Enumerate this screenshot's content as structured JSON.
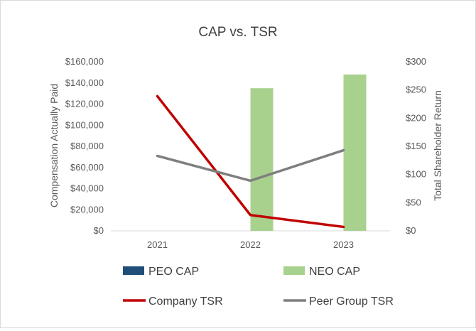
{
  "chart_data": {
    "type": "bar+line",
    "title": "CAP vs. TSR",
    "categories": [
      "2021",
      "2022",
      "2023"
    ],
    "ylabel_left": "Compensation Actually Paid",
    "ylabel_right": "Total Shareholder Return",
    "ylim_left": [
      0,
      160000
    ],
    "ylim_right": [
      0,
      300
    ],
    "yticks_left": [
      "$0",
      "$20,000",
      "$40,000",
      "$60,000",
      "$80,000",
      "$100,000",
      "$120,000",
      "$140,000",
      "$160,000"
    ],
    "yticks_right": [
      "$0",
      "$50",
      "$100",
      "$150",
      "$200",
      "$250",
      "$300"
    ],
    "grid": false,
    "bar_series": [
      {
        "name": "PEO CAP",
        "axis": "left",
        "color": "#1f4e79",
        "values": [
          0,
          0,
          0
        ]
      },
      {
        "name": "NEO CAP",
        "axis": "left",
        "color": "#a9d18e",
        "values": [
          0,
          135000,
          148000
        ]
      }
    ],
    "line_series": [
      {
        "name": "Company TSR",
        "axis": "right",
        "color": "#c00000",
        "values": [
          239,
          28,
          7
        ]
      },
      {
        "name": "Peer Group TSR",
        "axis": "right",
        "color": "#7f7f7f",
        "values": [
          133,
          89,
          143
        ]
      }
    ],
    "legend": [
      {
        "name": "PEO CAP",
        "kind": "bar",
        "color": "#1f4e79"
      },
      {
        "name": "NEO CAP",
        "kind": "bar",
        "color": "#a9d18e"
      },
      {
        "name": "Company TSR",
        "kind": "line",
        "color": "#c00000"
      },
      {
        "name": "Peer Group TSR",
        "kind": "line",
        "color": "#7f7f7f"
      }
    ]
  }
}
